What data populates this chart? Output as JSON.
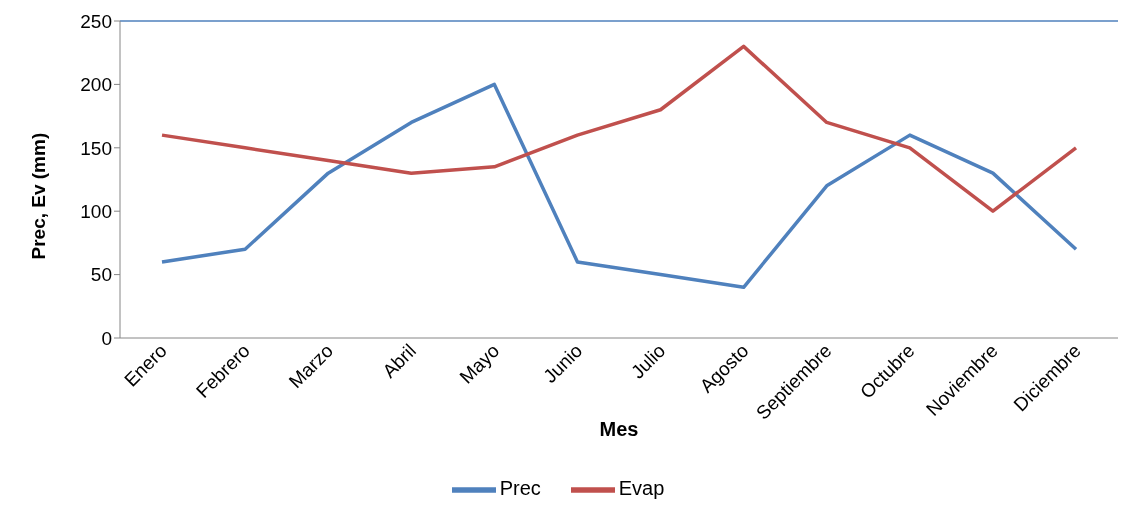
{
  "chart_data": {
    "type": "line",
    "xlabel": "Mes",
    "ylabel": "Prec, Ev (mm)",
    "categories": [
      "Enero",
      "Febrero",
      "Marzo",
      "Abril",
      "Mayo",
      "Junio",
      "Julio",
      "Agosto",
      "Septiembre",
      "Octubre",
      "Noviembre",
      "Diciembre"
    ],
    "series": [
      {
        "name": "Prec",
        "color": "#4f81bd",
        "values": [
          60,
          70,
          130,
          170,
          200,
          60,
          50,
          40,
          120,
          160,
          130,
          70
        ]
      },
      {
        "name": "Evap",
        "color": "#c0504d",
        "values": [
          160,
          150,
          140,
          130,
          135,
          160,
          180,
          230,
          170,
          150,
          100,
          150
        ]
      }
    ],
    "ylim": [
      0,
      250
    ],
    "yticks": [
      0,
      50,
      100,
      150,
      200,
      250
    ],
    "grid": false,
    "legend": "bottom",
    "marker": "none",
    "line_style": "solid",
    "ref_lines": [
      {
        "axis": "y",
        "value": 250,
        "color": "#4f81bd"
      }
    ]
  }
}
